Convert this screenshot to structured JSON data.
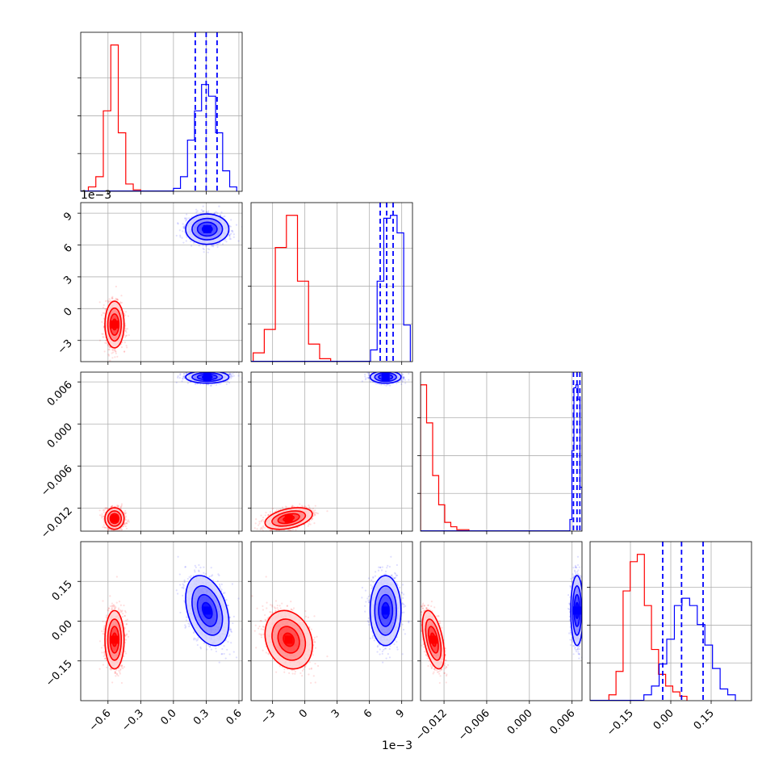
{
  "colors": {
    "series_a": "#ff0000",
    "series_b": "#0000ff",
    "grid": "#b0b0b0",
    "axes": "#000000"
  },
  "chart_data": {
    "type": "corner",
    "grid": true,
    "quantile_lines": {
      "series": "b",
      "style": "dashed"
    },
    "params": [
      {
        "range": [
          -0.85,
          0.63
        ],
        "ticks": [
          -0.6,
          -0.3,
          0.0,
          0.3,
          0.6
        ],
        "tick_labels": [
          "−0.6",
          "−0.3",
          "0.0",
          "0.3",
          "0.6"
        ],
        "offset": ""
      },
      {
        "range": [
          -5.0,
          10.0
        ],
        "ticks": [
          -3,
          0,
          3,
          6,
          9
        ],
        "tick_labels": [
          "−3",
          "0",
          "3",
          "6",
          "9"
        ],
        "offset": "1e−3"
      },
      {
        "range": [
          -0.0153,
          0.0074
        ],
        "ticks": [
          -0.012,
          -0.006,
          0.0,
          0.006
        ],
        "tick_labels": [
          "−0.012",
          "−0.006",
          "0.000",
          "0.006"
        ],
        "offset": ""
      },
      {
        "range": [
          -0.3,
          0.3
        ],
        "ticks": [
          -0.15,
          0.0,
          0.15
        ],
        "tick_labels": [
          "−0.15",
          "0.00",
          "0.15"
        ],
        "offset": ""
      }
    ],
    "series": [
      {
        "key": "a",
        "color": "#ff0000",
        "mean": [
          -0.54,
          -1.5,
          -0.0135,
          -0.07
        ],
        "std": [
          0.04,
          1.0,
          0.0007,
          0.05
        ],
        "corr": [
          [
            1,
            0,
            0,
            0
          ],
          [
            0,
            1,
            0.4,
            -0.2
          ],
          [
            0,
            0.4,
            1,
            -0.5
          ],
          [
            0,
            -0.2,
            -0.5,
            1
          ]
        ],
        "hist": [
          [
            0.03,
            0.1,
            0.55,
            1.0,
            0.4,
            0.05,
            0.01
          ],
          [
            0.06,
            0.22,
            0.78,
            1.0,
            0.55,
            0.12,
            0.02
          ],
          [
            1.0,
            0.74,
            0.38,
            0.18,
            0.06,
            0.03,
            0.01,
            0.01
          ],
          [
            0.04,
            0.2,
            0.75,
            0.95,
            1.0,
            0.65,
            0.35,
            0.18,
            0.1,
            0.06,
            0.03
          ]
        ],
        "hist_extent": [
          [
            -0.78,
            -0.3
          ],
          [
            -4.8,
            2.4
          ],
          [
            -0.0153,
            -0.0085
          ],
          [
            -0.23,
            0.06
          ]
        ]
      },
      {
        "key": "b",
        "color": "#0000ff",
        "mean": [
          0.31,
          7.5,
          0.0067,
          0.04
        ],
        "std": [
          0.09,
          0.65,
          0.0004,
          0.06
        ],
        "corr": [
          [
            1,
            0,
            0,
            -0.35
          ],
          [
            0,
            1,
            0,
            0
          ],
          [
            0,
            0,
            1,
            0
          ],
          [
            -0.35,
            0,
            0,
            1
          ]
        ],
        "hist": [
          [
            0.02,
            0.1,
            0.35,
            0.55,
            0.73,
            0.65,
            0.4,
            0.14,
            0.03
          ],
          [
            0.08,
            0.55,
            0.98,
            1.0,
            0.88,
            0.25
          ],
          [
            0.08,
            0.55,
            0.98,
            1.0,
            0.9,
            0.3
          ],
          [
            0.04,
            0.1,
            0.25,
            0.42,
            0.65,
            0.7,
            0.65,
            0.52,
            0.38,
            0.22,
            0.08,
            0.04
          ]
        ],
        "hist_extent": [
          [
            0.0,
            0.58
          ],
          [
            6.1,
            9.8
          ],
          [
            0.0057,
            0.0074
          ],
          [
            -0.1,
            0.24
          ]
        ],
        "quantiles": [
          [
            0.2,
            0.3,
            0.4
          ],
          [
            7.0,
            7.6,
            8.2
          ],
          [
            0.0062,
            0.0067,
            0.0071
          ],
          [
            -0.03,
            0.04,
            0.12
          ]
        ]
      }
    ]
  }
}
